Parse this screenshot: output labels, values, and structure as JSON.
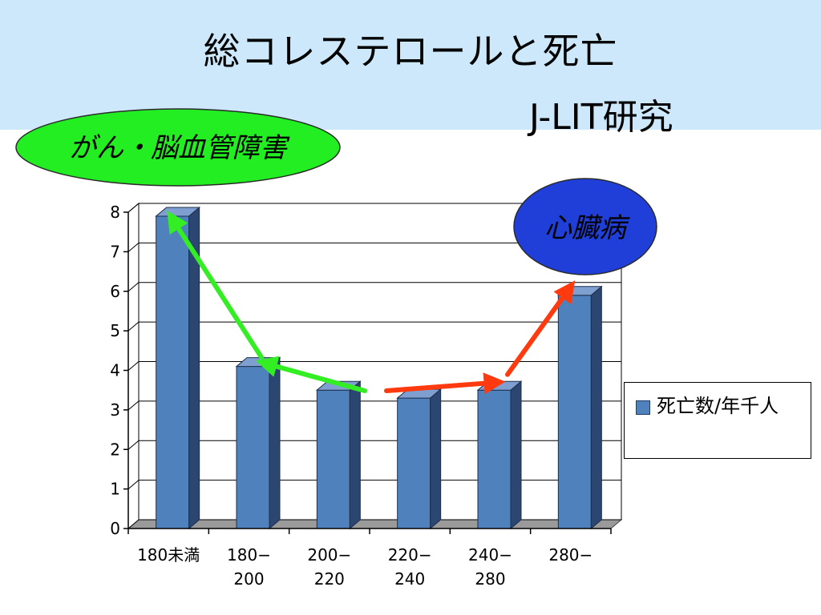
{
  "header": {
    "title": "総コレステロールと死亡",
    "subtitle": "J-LIT研究"
  },
  "annotations": {
    "left_oval": "がん・脳血管障害",
    "right_oval": "心臓病",
    "left_oval_color": "#22ee22",
    "right_oval_color": "#1f3fd8",
    "left_arrow_color": "#33ee22",
    "right_arrow_color": "#ff3a0f"
  },
  "chart_data": {
    "type": "bar",
    "style": "3d-column",
    "categories": [
      "180未満",
      "180−200",
      "200−220",
      "220−240",
      "240−280",
      "280−"
    ],
    "category_lines": [
      [
        "180未満"
      ],
      [
        "180−",
        "200"
      ],
      [
        "200−",
        "220"
      ],
      [
        "220−",
        "240"
      ],
      [
        "240−",
        "280"
      ],
      [
        "280−"
      ]
    ],
    "series": [
      {
        "name": "死亡数/年千人",
        "values": [
          7.9,
          4.1,
          3.5,
          3.3,
          3.5,
          5.9
        ]
      }
    ],
    "yticks": [
      0,
      1,
      2,
      3,
      4,
      5,
      6,
      7,
      8
    ],
    "ylim": [
      0,
      8
    ],
    "grid": true,
    "legend": "right",
    "colors": {
      "bar_front": "#4f81bd",
      "bar_side": "#2b4670",
      "bar_top": "#7f9fd0"
    }
  }
}
